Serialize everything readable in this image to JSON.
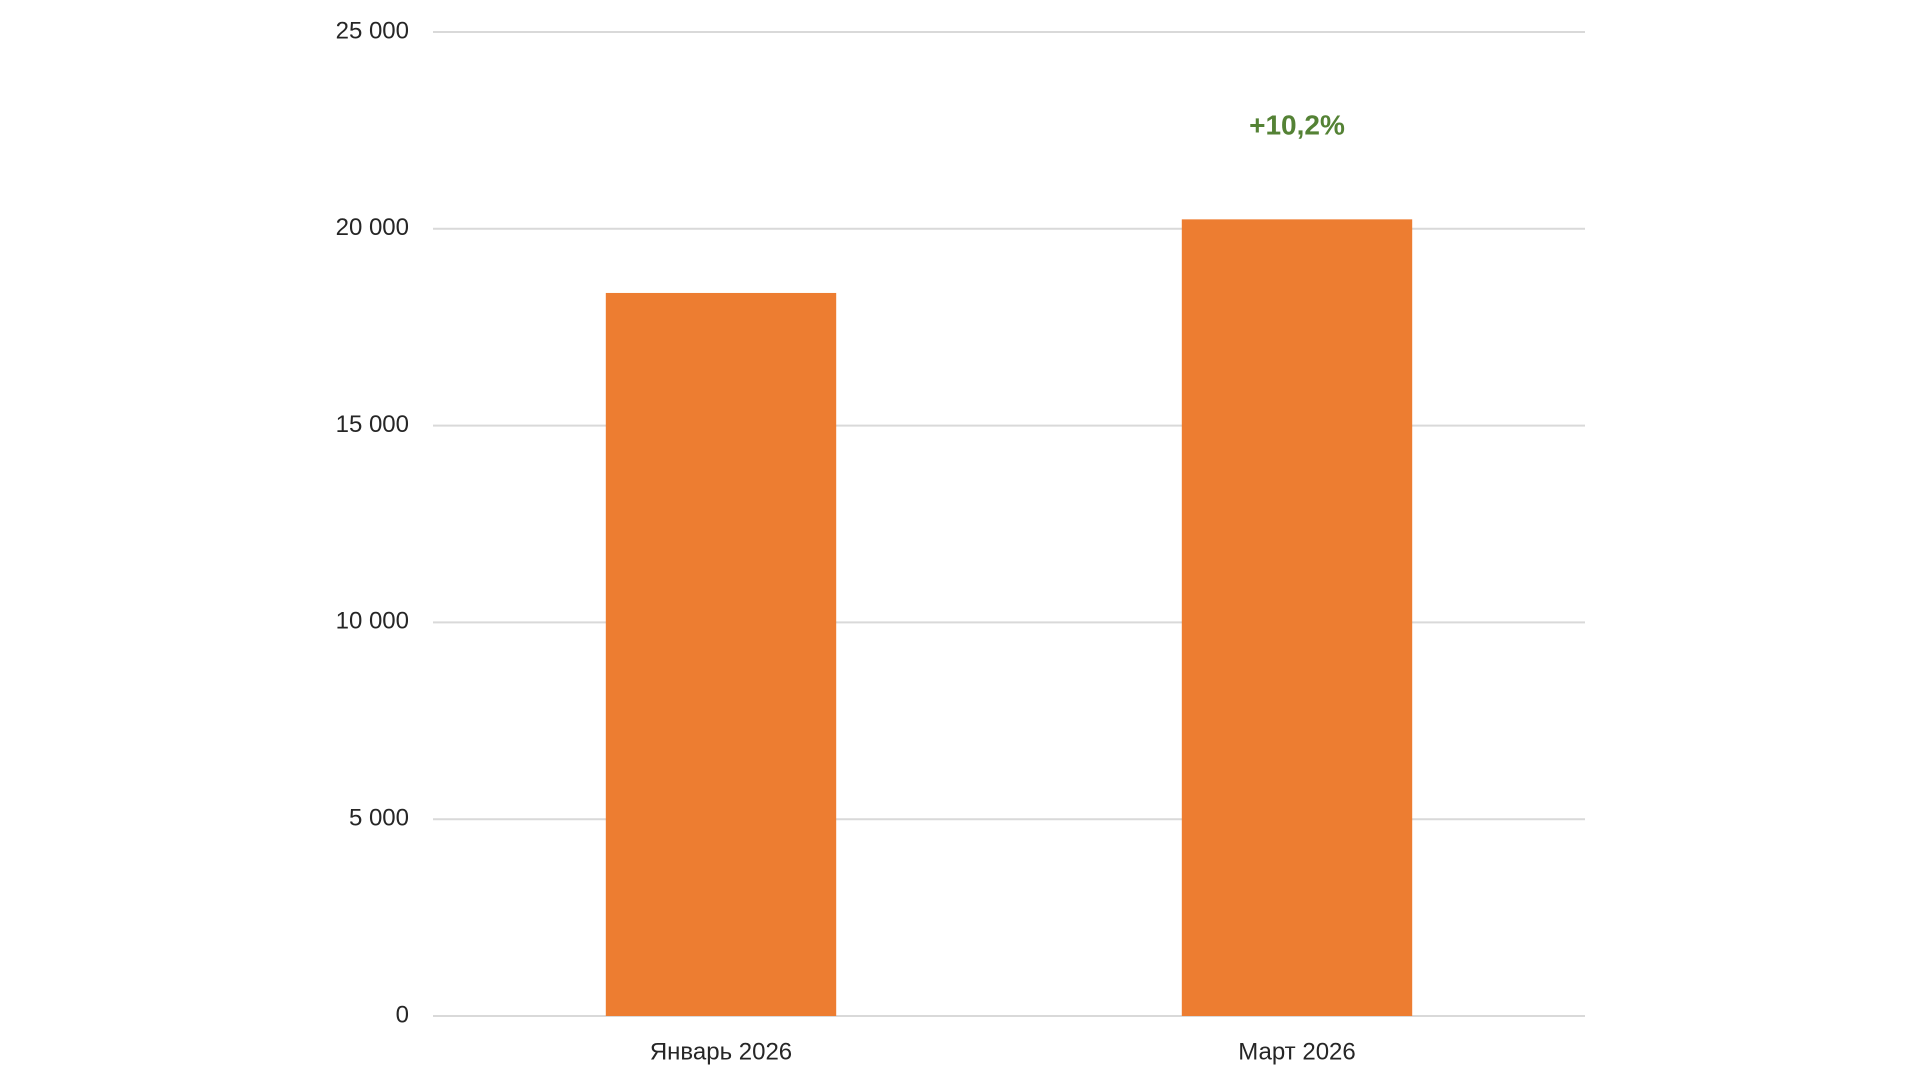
{
  "chart_data": {
    "type": "bar",
    "categories": [
      "Январь 2026",
      "Март 2026"
    ],
    "values": [
      18370,
      20240
    ],
    "color": "#ed7d31",
    "annotation": "+10,2%",
    "annotation_color": "#548235",
    "ylim": [
      0,
      25000
    ],
    "yticks": [
      0,
      {
        "value": 5000,
        "label": "5 000"
      },
      {
        "value": 10000,
        "label": "10 000"
      },
      {
        "value": 15000,
        "label": "15 000"
      },
      {
        "value": 20000,
        "label": "20 000"
      },
      {
        "value": 25000,
        "label": "25 000"
      }
    ],
    "grid": true
  }
}
